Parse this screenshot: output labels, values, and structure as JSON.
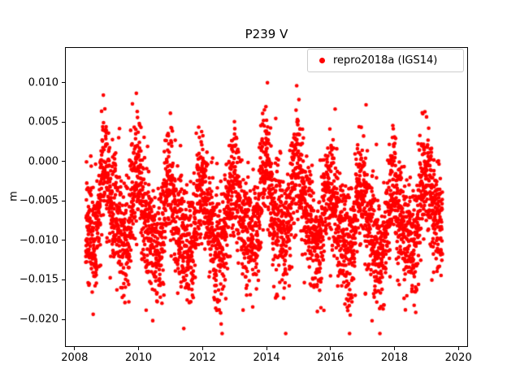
{
  "chart_data": {
    "type": "scatter",
    "title": "P239 V",
    "xlabel": "",
    "ylabel": "m",
    "legend_position": "upper right",
    "grid": false,
    "series": [
      {
        "name": "repro2018a (IGS14)",
        "color": "#ff0000",
        "marker": "point",
        "marker_radius_px": 2.3
      }
    ],
    "xlim": [
      2007.7,
      2020.3
    ],
    "ylim": [
      -0.0235,
      0.0145
    ],
    "xticks": {
      "values": [
        2008,
        2010,
        2012,
        2014,
        2016,
        2018,
        2020
      ],
      "labels": [
        "2008",
        "2010",
        "2012",
        "2014",
        "2016",
        "2018",
        "2020"
      ]
    },
    "yticks": {
      "values": [
        0.01,
        0.005,
        0.0,
        -0.005,
        -0.01,
        -0.015,
        -0.02
      ],
      "labels": [
        "0.010",
        "0.005",
        "0.000",
        "−0.005",
        "−0.010",
        "−0.015",
        "−0.020"
      ]
    },
    "x_range_observed": [
      2008.35,
      2019.5
    ],
    "y_range_observed": [
      -0.0215,
      0.0128
    ],
    "n_points_approx": 4000,
    "synthesis": {
      "seed": 239,
      "n_points": 4000,
      "x_start": 2008.35,
      "x_end": 2019.5,
      "mean": -0.0068,
      "annual_amplitude": 0.004,
      "annual_phase": 0.0,
      "semiannual_amplitude": 0.0014,
      "interannual_amplitude": 0.0012,
      "interannual_period_years": 5.5,
      "noise_sigma": 0.0037,
      "outlier_probability": 0.012,
      "outlier_sigma": 0.004,
      "ymax_clip": 0.0132,
      "ymin_clip": -0.0218
    }
  }
}
